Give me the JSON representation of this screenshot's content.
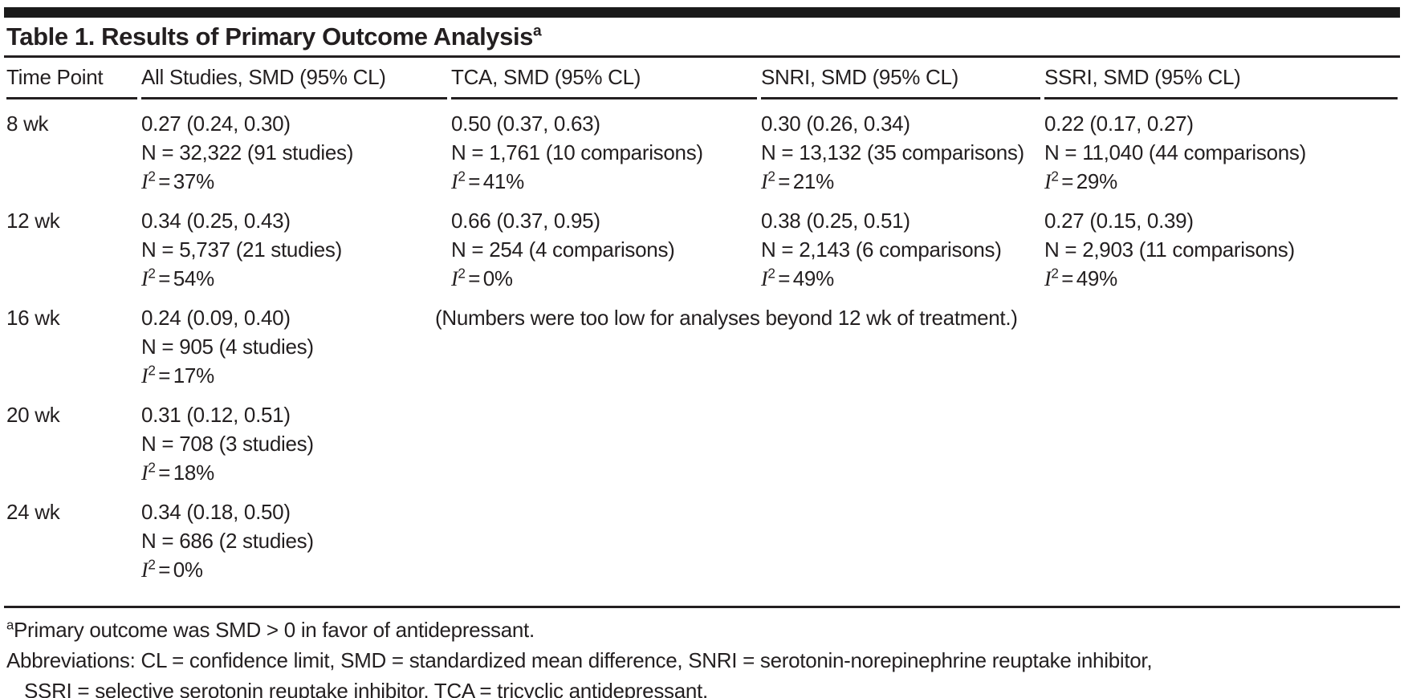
{
  "title": {
    "text": "Table 1. Results of Primary Outcome Analysis",
    "superscript": "a"
  },
  "labels": {
    "i2_base": "I",
    "i2_exp": "2",
    "i2_eq": "="
  },
  "table": {
    "columns": [
      "Time Point",
      "All Studies, SMD (95% CL)",
      "TCA, SMD (95% CL)",
      "SNRI, SMD (95% CL)",
      "SSRI, SMD (95% CL)"
    ],
    "rows": [
      {
        "time": "8 wk",
        "cells": [
          {
            "smd": "0.27 (0.24, 0.30)",
            "n": "N = 32,322 (91 studies)",
            "i2": "37%"
          },
          {
            "smd": "0.50 (0.37, 0.63)",
            "n": "N = 1,761 (10 comparisons)",
            "i2": "41%"
          },
          {
            "smd": "0.30 (0.26, 0.34)",
            "n": "N = 13,132 (35 comparisons)",
            "i2": "21%"
          },
          {
            "smd": "0.22 (0.17, 0.27)",
            "n": "N = 11,040 (44 comparisons)",
            "i2": "29%"
          }
        ]
      },
      {
        "time": "12 wk",
        "cells": [
          {
            "smd": "0.34 (0.25, 0.43)",
            "n": "N = 5,737 (21 studies)",
            "i2": "54%"
          },
          {
            "smd": "0.66 (0.37, 0.95)",
            "n": "N = 254 (4 comparisons)",
            "i2": "0%"
          },
          {
            "smd": "0.38 (0.25, 0.51)",
            "n": "N = 2,143 (6 comparisons)",
            "i2": "49%"
          },
          {
            "smd": "0.27 (0.15, 0.39)",
            "n": "N = 2,903 (11 comparisons)",
            "i2": "49%"
          }
        ]
      },
      {
        "time": "16 wk",
        "cells": [
          {
            "smd": "0.24 (0.09, 0.40)",
            "n": "N = 905 (4 studies)",
            "i2": "17%"
          }
        ],
        "note": "(Numbers were too low for analyses beyond 12 wk of treatment.)"
      },
      {
        "time": "20 wk",
        "cells": [
          {
            "smd": "0.31 (0.12, 0.51)",
            "n": "N = 708 (3 studies)",
            "i2": "18%"
          }
        ]
      },
      {
        "time": "24 wk",
        "cells": [
          {
            "smd": "0.34 (0.18, 0.50)",
            "n": "N = 686 (2 studies)",
            "i2": "0%"
          }
        ]
      }
    ]
  },
  "footnotes": {
    "a_marker": "a",
    "a_text": "Primary outcome was SMD > 0 in favor of antidepressant.",
    "abbreviations_line1": "Abbreviations: CL = confidence limit, SMD = standardized mean difference, SNRI = serotonin-norepinephrine reuptake inhibitor,",
    "abbreviations_line2": "SSRI = selective serotonin reuptake inhibitor, TCA = tricyclic antidepressant."
  },
  "colors": {
    "text": "#231f20",
    "rule": "#1a1a1a",
    "background": "#ffffff"
  }
}
